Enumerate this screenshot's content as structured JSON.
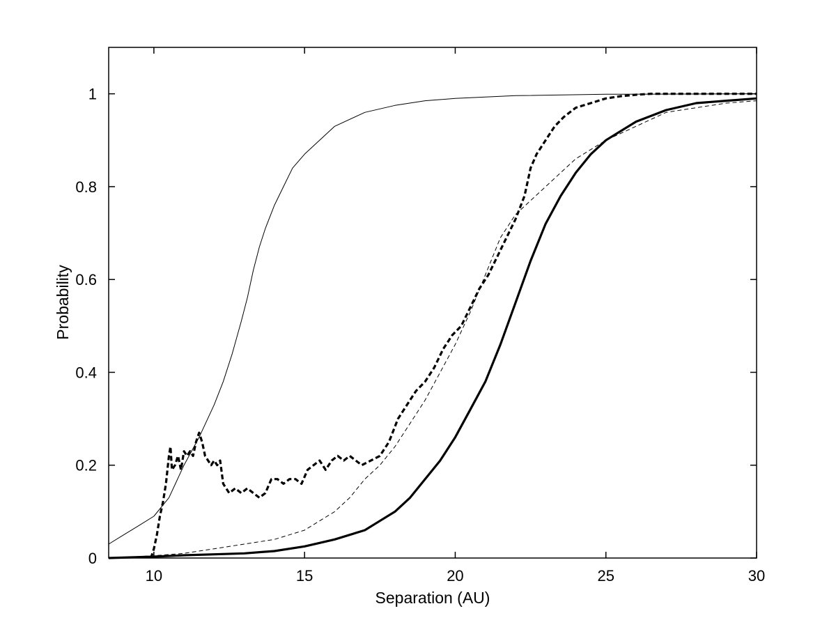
{
  "chart_data": {
    "type": "line",
    "xlabel": "Separation (AU)",
    "ylabel": "Probability",
    "xlim": [
      8.5,
      30
    ],
    "ylim": [
      0,
      1.1
    ],
    "xticks": [
      10,
      15,
      20,
      25,
      30
    ],
    "xtick_labels": [
      "10",
      "15",
      "20",
      "25",
      "30"
    ],
    "yticks": [
      0,
      0.2,
      0.4,
      0.6,
      0.8,
      1
    ],
    "ytick_labels": [
      "0",
      "0.2",
      "0.4",
      "0.6",
      "0.8",
      "1"
    ],
    "grid": false,
    "legend": "none",
    "series": [
      {
        "style": "thin-solid",
        "color": "#000000",
        "x": [
          8.5,
          9,
          9.5,
          10,
          10.5,
          11,
          11.5,
          12,
          12.3,
          12.6,
          12.9,
          13.1,
          13.3,
          13.5,
          13.7,
          14,
          14.3,
          14.6,
          15,
          15.5,
          16,
          17,
          18,
          19,
          20,
          22,
          25,
          30
        ],
        "y": [
          0.03,
          0.05,
          0.07,
          0.09,
          0.13,
          0.2,
          0.26,
          0.33,
          0.38,
          0.44,
          0.51,
          0.56,
          0.62,
          0.67,
          0.71,
          0.76,
          0.8,
          0.84,
          0.87,
          0.9,
          0.93,
          0.96,
          0.975,
          0.985,
          0.99,
          0.996,
          0.999,
          1.0
        ]
      },
      {
        "style": "thick-dashed",
        "color": "#000000",
        "x": [
          9.9,
          10.0,
          10.1,
          10.2,
          10.3,
          10.4,
          10.5,
          10.55,
          10.6,
          10.7,
          10.8,
          10.9,
          11.0,
          11.1,
          11.2,
          11.3,
          11.4,
          11.5,
          11.6,
          11.7,
          11.8,
          11.9,
          12.0,
          12.1,
          12.2,
          12.3,
          12.5,
          12.7,
          12.9,
          13.1,
          13.3,
          13.5,
          13.7,
          13.9,
          14.1,
          14.3,
          14.5,
          14.7,
          14.9,
          15.1,
          15.3,
          15.5,
          15.7,
          15.9,
          16.1,
          16.3,
          16.5,
          16.7,
          16.9,
          17.2,
          17.5,
          17.8,
          18.1,
          18.4,
          18.7,
          19.0,
          19.3,
          19.6,
          19.9,
          20.2,
          20.5,
          20.8,
          21.1,
          21.4,
          21.7,
          22.0,
          22.3,
          22.5,
          22.7,
          23.0,
          23.3,
          23.6,
          24.0,
          24.5,
          25.0,
          25.5,
          26.0,
          26.5,
          27.0,
          28.0,
          30.0
        ],
        "y": [
          0.0,
          0.02,
          0.05,
          0.09,
          0.12,
          0.16,
          0.22,
          0.24,
          0.19,
          0.2,
          0.22,
          0.19,
          0.23,
          0.22,
          0.23,
          0.22,
          0.25,
          0.27,
          0.25,
          0.22,
          0.21,
          0.2,
          0.21,
          0.2,
          0.21,
          0.16,
          0.14,
          0.15,
          0.14,
          0.15,
          0.14,
          0.13,
          0.14,
          0.17,
          0.17,
          0.16,
          0.17,
          0.17,
          0.16,
          0.19,
          0.2,
          0.21,
          0.19,
          0.21,
          0.22,
          0.21,
          0.22,
          0.21,
          0.2,
          0.21,
          0.22,
          0.25,
          0.3,
          0.33,
          0.36,
          0.38,
          0.41,
          0.45,
          0.48,
          0.5,
          0.54,
          0.58,
          0.61,
          0.65,
          0.69,
          0.73,
          0.78,
          0.84,
          0.87,
          0.9,
          0.93,
          0.95,
          0.97,
          0.98,
          0.99,
          0.995,
          0.998,
          1.0,
          1.0,
          1.0,
          1.0
        ]
      },
      {
        "style": "thin-dashed",
        "color": "#000000",
        "x": [
          8.5,
          10,
          11,
          12,
          13,
          14,
          15,
          15.5,
          16,
          16.5,
          17,
          17.5,
          18,
          18.5,
          19,
          19.5,
          20,
          20.5,
          21,
          21.5,
          22,
          22.5,
          23,
          23.5,
          24,
          25,
          26,
          27,
          28,
          29,
          30
        ],
        "y": [
          0.0,
          0.005,
          0.01,
          0.02,
          0.03,
          0.04,
          0.06,
          0.08,
          0.1,
          0.13,
          0.17,
          0.2,
          0.24,
          0.29,
          0.34,
          0.4,
          0.46,
          0.53,
          0.61,
          0.69,
          0.74,
          0.77,
          0.8,
          0.83,
          0.86,
          0.9,
          0.93,
          0.96,
          0.97,
          0.98,
          0.985
        ]
      },
      {
        "style": "thick-solid",
        "color": "#000000",
        "x": [
          8.5,
          10,
          11,
          12,
          13,
          14,
          15,
          16,
          17,
          17.5,
          18,
          18.5,
          19,
          19.5,
          20,
          20.5,
          21,
          21.5,
          22,
          22.5,
          23,
          23.5,
          24,
          24.5,
          25,
          26,
          27,
          28,
          29,
          30
        ],
        "y": [
          0.0,
          0.003,
          0.006,
          0.008,
          0.01,
          0.015,
          0.025,
          0.04,
          0.06,
          0.08,
          0.1,
          0.13,
          0.17,
          0.21,
          0.26,
          0.32,
          0.38,
          0.46,
          0.55,
          0.64,
          0.72,
          0.78,
          0.83,
          0.87,
          0.9,
          0.94,
          0.965,
          0.98,
          0.985,
          0.99
        ]
      }
    ]
  }
}
